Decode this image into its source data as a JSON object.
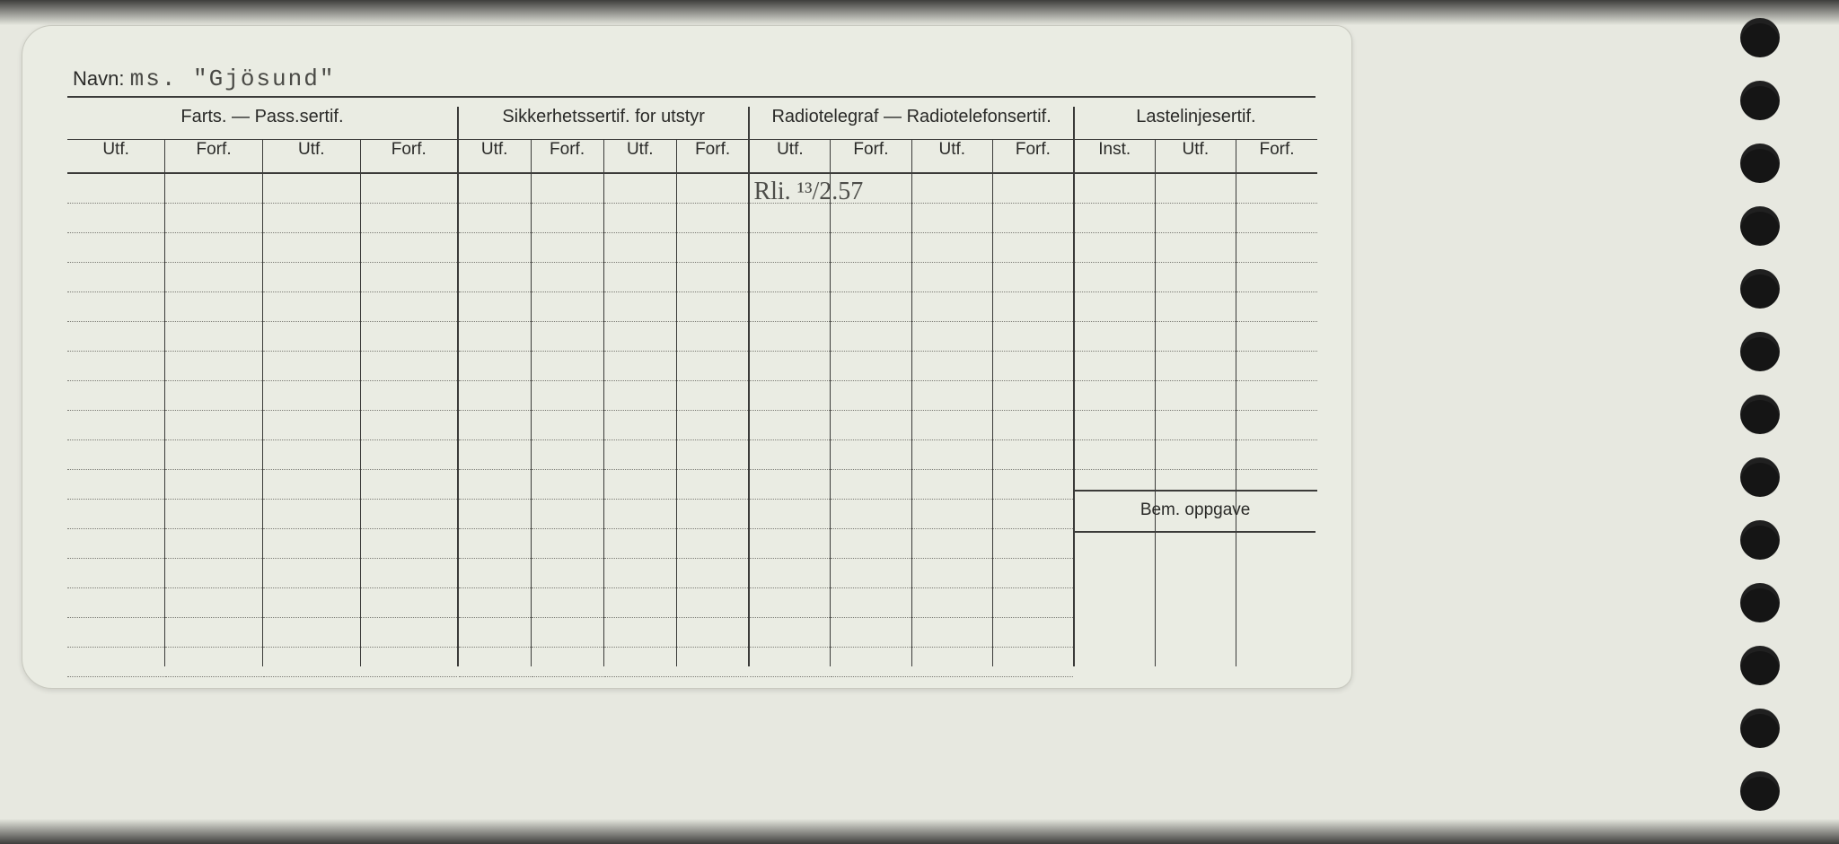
{
  "page": {
    "bg": "#6a6a68",
    "card_bg": "#eaece3",
    "ink": "#3b3b39"
  },
  "navn": {
    "label": "Navn:",
    "value": "ms. \"Gjösund\""
  },
  "groups": [
    {
      "title": "Farts. — Pass.sertif.",
      "cols": [
        "Utf.",
        "Forf.",
        "Utf.",
        "Forf."
      ]
    },
    {
      "title": "Sikkerhetssertif. for utstyr",
      "cols": [
        "Utf.",
        "Forf.",
        "Utf.",
        "Forf."
      ]
    },
    {
      "title": "Radiotelegraf — Radiotelefonsertif.",
      "cols": [
        "Utf.",
        "Forf.",
        "Utf.",
        "Forf."
      ]
    },
    {
      "title": "Lastelinjesertif.",
      "cols": [
        "Inst.",
        "Utf.",
        "Forf."
      ]
    }
  ],
  "bem": {
    "label": "Bem. oppgave"
  },
  "handwritten": {
    "text": "Rli. ¹³/2.57",
    "col_index": 8,
    "row_index": 0
  },
  "grid": {
    "dot_row_height": 32,
    "dot_row_count": 17,
    "dot_color": "#7c7c76"
  },
  "punches": {
    "count": 13,
    "diameter": 44,
    "color": "#151515"
  }
}
